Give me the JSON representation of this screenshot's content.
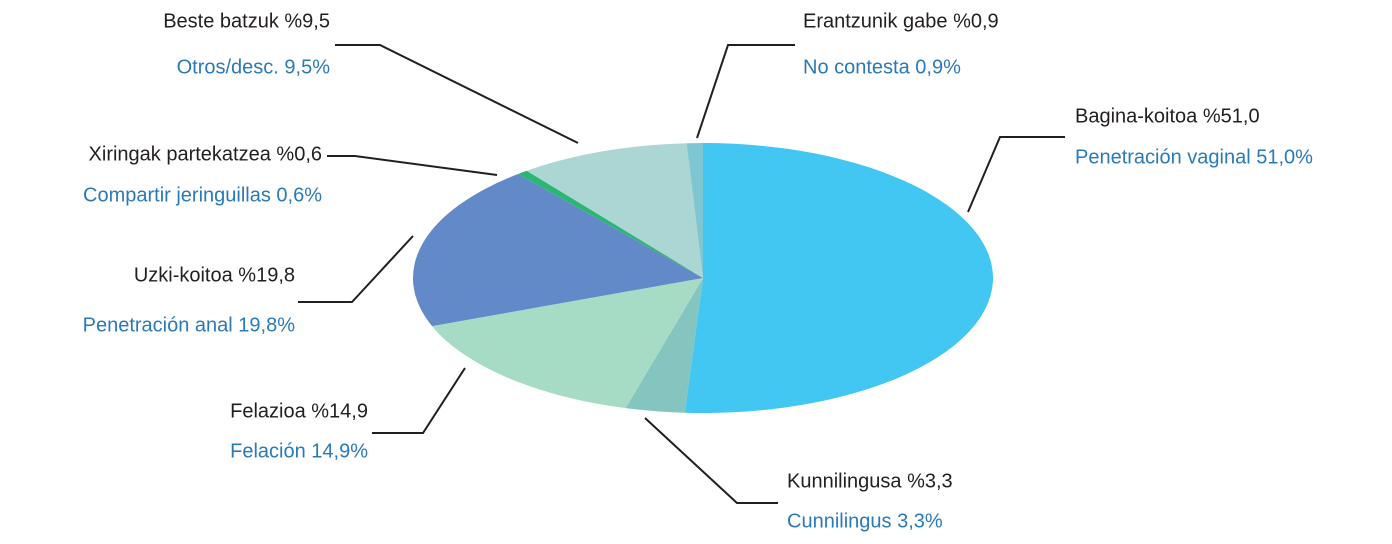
{
  "chart_data": {
    "type": "pie",
    "values": [
      51.0,
      3.3,
      14.9,
      19.8,
      0.6,
      9.5,
      0.9
    ],
    "value_labels": [
      "Bagina-koitoa %51,0",
      "Kunnilingusa %3,3",
      "Felazioa %14,9",
      "Uzki-koitoa %19,8",
      "Xiringak partekatzea %0,6",
      "Beste batzuk %9,5",
      "Erantzunik gabe %0,9"
    ],
    "value_labels_es": [
      "Penetración vaginal 51,0%",
      "Cunnilingus 3,3%",
      "Felación 14,9%",
      "Penetración anal 19,8%",
      "Compartir jeringuillas 0,6%",
      "Otros/desc. 9,5%",
      "No contesta 0,9%"
    ],
    "colors": [
      "#41c7f2",
      "#84c5c0",
      "#a6dcc6",
      "#6289c8",
      "#2bb673",
      "#acd6d3",
      "#7fc6d3"
    ]
  }
}
